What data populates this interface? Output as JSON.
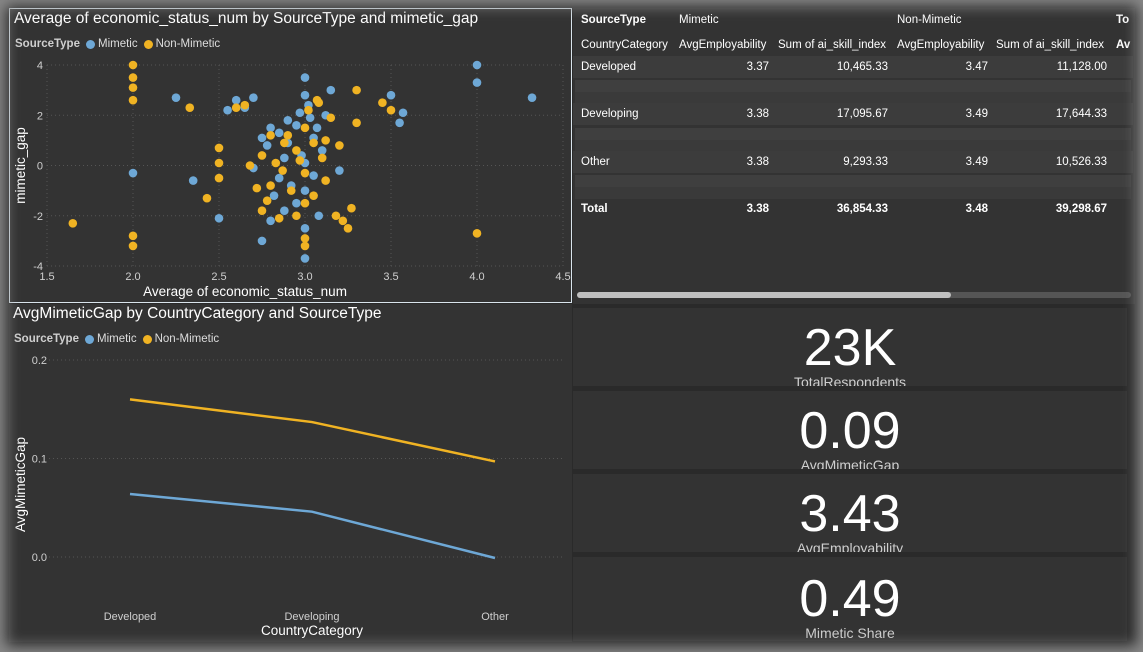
{
  "colors": {
    "mimetic": "#6ea8d6",
    "non_mimetic": "#f0b323"
  },
  "scatter": {
    "title": "Average of economic_status_num by SourceType and mimetic_gap",
    "legend_title": "SourceType",
    "legend_items": [
      "Mimetic",
      "Non-Mimetic"
    ],
    "chart_data": {
      "type": "scatter",
      "xlabel": "Average of economic_status_num",
      "ylabel": "mimetic_gap",
      "xlim": [
        1.5,
        4.5
      ],
      "ylim": [
        -4,
        4
      ],
      "x_ticks": [
        "1.5",
        "2.0",
        "2.5",
        "3.0",
        "3.5",
        "4.0",
        "4.5"
      ],
      "y_ticks": [
        "4",
        "2",
        "0",
        "-2",
        "-4"
      ],
      "grid": true,
      "series": [
        {
          "name": "Mimetic",
          "points": [
            [
              2.0,
              -0.3
            ],
            [
              2.25,
              2.7
            ],
            [
              2.35,
              -0.6
            ],
            [
              2.5,
              -2.1
            ],
            [
              2.55,
              2.2
            ],
            [
              2.6,
              2.6
            ],
            [
              2.65,
              2.3
            ],
            [
              2.7,
              2.7
            ],
            [
              2.75,
              -3.0
            ],
            [
              2.78,
              0.8
            ],
            [
              2.8,
              1.5
            ],
            [
              2.82,
              -1.2
            ],
            [
              2.85,
              1.3
            ],
            [
              2.88,
              0.3
            ],
            [
              2.9,
              1.8
            ],
            [
              2.92,
              -0.8
            ],
            [
              2.95,
              1.6
            ],
            [
              2.97,
              2.1
            ],
            [
              3.0,
              3.5
            ],
            [
              3.0,
              2.8
            ],
            [
              3.0,
              0.1
            ],
            [
              3.0,
              -1.0
            ],
            [
              3.0,
              -2.5
            ],
            [
              3.0,
              -3.7
            ],
            [
              3.02,
              2.4
            ],
            [
              3.05,
              1.1
            ],
            [
              3.05,
              -0.4
            ],
            [
              3.07,
              1.5
            ],
            [
              3.1,
              0.6
            ],
            [
              3.12,
              2.0
            ],
            [
              3.15,
              3.0
            ],
            [
              3.2,
              -0.2
            ],
            [
              2.85,
              -0.5
            ],
            [
              2.9,
              0.9
            ],
            [
              2.95,
              -1.5
            ],
            [
              2.8,
              -2.2
            ],
            [
              2.7,
              -0.1
            ],
            [
              2.75,
              1.1
            ],
            [
              3.08,
              -2.0
            ],
            [
              3.5,
              2.8
            ],
            [
              3.55,
              1.7
            ],
            [
              3.57,
              2.1
            ],
            [
              4.0,
              4.0
            ],
            [
              4.0,
              3.3
            ],
            [
              4.32,
              2.7
            ],
            [
              2.88,
              -1.8
            ],
            [
              2.98,
              0.4
            ],
            [
              3.03,
              1.9
            ]
          ]
        },
        {
          "name": "Non-Mimetic",
          "points": [
            [
              1.65,
              -2.3
            ],
            [
              2.0,
              4.0
            ],
            [
              2.0,
              3.5
            ],
            [
              2.0,
              3.1
            ],
            [
              2.0,
              2.6
            ],
            [
              2.0,
              -2.8
            ],
            [
              2.0,
              -3.2
            ],
            [
              2.33,
              2.3
            ],
            [
              2.43,
              -1.3
            ],
            [
              2.5,
              0.7
            ],
            [
              2.5,
              0.1
            ],
            [
              2.5,
              -0.5
            ],
            [
              2.6,
              2.3
            ],
            [
              2.65,
              2.4
            ],
            [
              2.75,
              0.4
            ],
            [
              2.75,
              -1.8
            ],
            [
              2.8,
              1.2
            ],
            [
              2.8,
              -0.8
            ],
            [
              2.83,
              0.1
            ],
            [
              2.85,
              -2.1
            ],
            [
              2.87,
              -0.2
            ],
            [
              2.9,
              1.2
            ],
            [
              2.92,
              -1.0
            ],
            [
              2.95,
              0.6
            ],
            [
              2.95,
              -2.0
            ],
            [
              2.97,
              0.2
            ],
            [
              3.0,
              1.5
            ],
            [
              3.0,
              -0.3
            ],
            [
              3.0,
              -1.5
            ],
            [
              3.0,
              -2.9
            ],
            [
              3.0,
              -3.2
            ],
            [
              3.02,
              2.2
            ],
            [
              3.05,
              0.9
            ],
            [
              3.05,
              -1.2
            ],
            [
              3.08,
              2.5
            ],
            [
              3.1,
              0.3
            ],
            [
              3.12,
              -0.6
            ],
            [
              3.15,
              1.9
            ],
            [
              3.18,
              -2.0
            ],
            [
              3.2,
              0.8
            ],
            [
              3.22,
              -2.2
            ],
            [
              3.25,
              -2.5
            ],
            [
              3.27,
              -1.7
            ],
            [
              3.3,
              3.0
            ],
            [
              3.3,
              1.7
            ],
            [
              3.45,
              2.5
            ],
            [
              3.5,
              2.2
            ],
            [
              4.0,
              -2.7
            ],
            [
              2.72,
              -0.9
            ],
            [
              2.78,
              -1.4
            ],
            [
              2.88,
              0.9
            ],
            [
              3.07,
              2.6
            ],
            [
              2.68,
              0.0
            ],
            [
              3.12,
              1.0
            ]
          ]
        }
      ]
    }
  },
  "matrix": {
    "header1": [
      "SourceType",
      "Mimetic",
      "Non-Mimetic",
      "To"
    ],
    "header2": [
      "CountryCategory",
      "AvgEmployability",
      "Sum of ai_skill_index",
      "AvgEmployability",
      "Sum of ai_skill_index",
      "Av"
    ],
    "rows": [
      {
        "label": "Developed",
        "values": [
          "3.37",
          "10,465.33",
          "3.47",
          "11,128.00"
        ]
      },
      {
        "label": "Developing",
        "values": [
          "3.38",
          "17,095.67",
          "3.49",
          "17,644.33"
        ]
      },
      {
        "label": "Other",
        "values": [
          "3.38",
          "9,293.33",
          "3.49",
          "10,526.33"
        ]
      }
    ],
    "total": {
      "label": "Total",
      "values": [
        "3.38",
        "36,854.33",
        "3.48",
        "39,298.67"
      ]
    }
  },
  "line": {
    "title": "AvgMimeticGap by CountryCategory and SourceType",
    "legend_title": "SourceType",
    "legend_items": [
      "Mimetic",
      "Non-Mimetic"
    ],
    "chart_data": {
      "type": "line",
      "xlabel": "CountryCategory",
      "ylabel": "AvgMimeticGap",
      "categories": [
        "Developed",
        "Developing",
        "Other"
      ],
      "ylim": [
        0.0,
        0.2
      ],
      "y_ticks": [
        "0.2",
        "0.1",
        "0.0"
      ],
      "grid": true,
      "series": [
        {
          "name": "Mimetic",
          "values": [
            0.064,
            0.046,
            -0.001
          ]
        },
        {
          "name": "Non-Mimetic",
          "values": [
            0.16,
            0.137,
            0.097
          ]
        }
      ]
    }
  },
  "cards": [
    {
      "value": "23K",
      "label": "TotalRespondents"
    },
    {
      "value": "0.09",
      "label": "AvgMimeticGap"
    },
    {
      "value": "3.43",
      "label": "AvgEmployability"
    },
    {
      "value": "0.49",
      "label": "Mimetic Share"
    }
  ]
}
